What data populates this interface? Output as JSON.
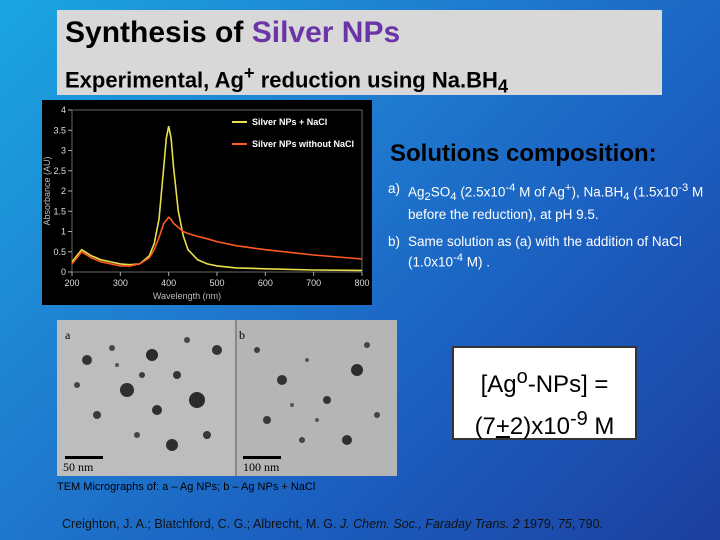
{
  "title": {
    "line1_prefix": "Synthesis of ",
    "line1_highlight": "Silver NPs",
    "line2_pre": "Experimental,  Ag",
    "line2_sup": "+",
    "line2_mid": " reduction using Na.BH",
    "line2_sub": "4"
  },
  "chart_data": {
    "type": "line",
    "xlabel": "Wavelength (nm)",
    "ylabel": "Absorbance (AU)",
    "xlim": [
      200,
      800
    ],
    "ylim": [
      0,
      4
    ],
    "x_ticks": [
      200,
      300,
      400,
      500,
      600,
      700,
      800
    ],
    "y_ticks": [
      0,
      0.5,
      1,
      1.5,
      2,
      2.5,
      3,
      3.5,
      4
    ],
    "legend_position": "top-right",
    "series": [
      {
        "name": "Silver NPs + NaCl",
        "color": "#e8e04a",
        "x": [
          200,
          220,
          240,
          260,
          280,
          300,
          320,
          340,
          360,
          370,
          380,
          390,
          395,
          400,
          405,
          410,
          420,
          430,
          440,
          460,
          480,
          500,
          540,
          600,
          700,
          800
        ],
        "y": [
          0.25,
          0.55,
          0.4,
          0.3,
          0.25,
          0.2,
          0.18,
          0.2,
          0.4,
          0.7,
          1.3,
          2.6,
          3.3,
          3.6,
          3.3,
          2.6,
          1.5,
          0.9,
          0.55,
          0.3,
          0.2,
          0.15,
          0.1,
          0.08,
          0.05,
          0.04
        ]
      },
      {
        "name": "Silver NPs without NaCl",
        "color": "#ff5a1f",
        "x": [
          200,
          220,
          240,
          260,
          280,
          300,
          320,
          340,
          360,
          370,
          380,
          390,
          400,
          405,
          410,
          420,
          430,
          440,
          460,
          480,
          500,
          540,
          600,
          700,
          800
        ],
        "y": [
          0.2,
          0.5,
          0.35,
          0.25,
          0.2,
          0.15,
          0.15,
          0.2,
          0.35,
          0.55,
          0.85,
          1.2,
          1.35,
          1.3,
          1.2,
          1.1,
          1.0,
          0.95,
          0.88,
          0.82,
          0.75,
          0.65,
          0.55,
          0.42,
          0.32
        ]
      }
    ]
  },
  "solutions": {
    "heading": "Solutions composition:",
    "item_a": {
      "mark": "a)",
      "t1": "Ag",
      "s1": "2",
      "t2": "SO",
      "s2": "4",
      "t3": " (2.5x10",
      "p1": "-4",
      "t4": " M of Ag",
      "p2": "+",
      "t5": "), Na.BH",
      "s3": "4",
      "t6": " (1.5x10",
      "p3": "-3",
      "t7": " M before the reduction), at pH 9.5."
    },
    "item_b": {
      "mark": "b)",
      "t1": "Same solution as (a) with the addition of NaCl (1.0x10",
      "p1": "-4",
      "t2": " M) ."
    }
  },
  "tem": {
    "label_a": "a",
    "label_b": "b",
    "scale_a": "50 nm",
    "scale_b": "100 nm",
    "caption": "TEM Micrographs of: a – Ag NPs; b – Ag NPs + NaCl"
  },
  "concentration": {
    "line1_pre": "[Ag",
    "line1_sup": "o",
    "line1_post": "-NPs] =",
    "line2_pre": "(7",
    "line2_pm": "+",
    "line2_mid": "2)x10",
    "line2_sup": "-9",
    "line2_post": " M"
  },
  "citation": {
    "authors": "Creighton, J. A.; Blatchford, C. G.; Albrecht, M. G. ",
    "journal": "J. Chem. Soc., Faraday Trans. 2",
    "year": " 1979, ",
    "volume": "75",
    "pages": ", 790."
  }
}
